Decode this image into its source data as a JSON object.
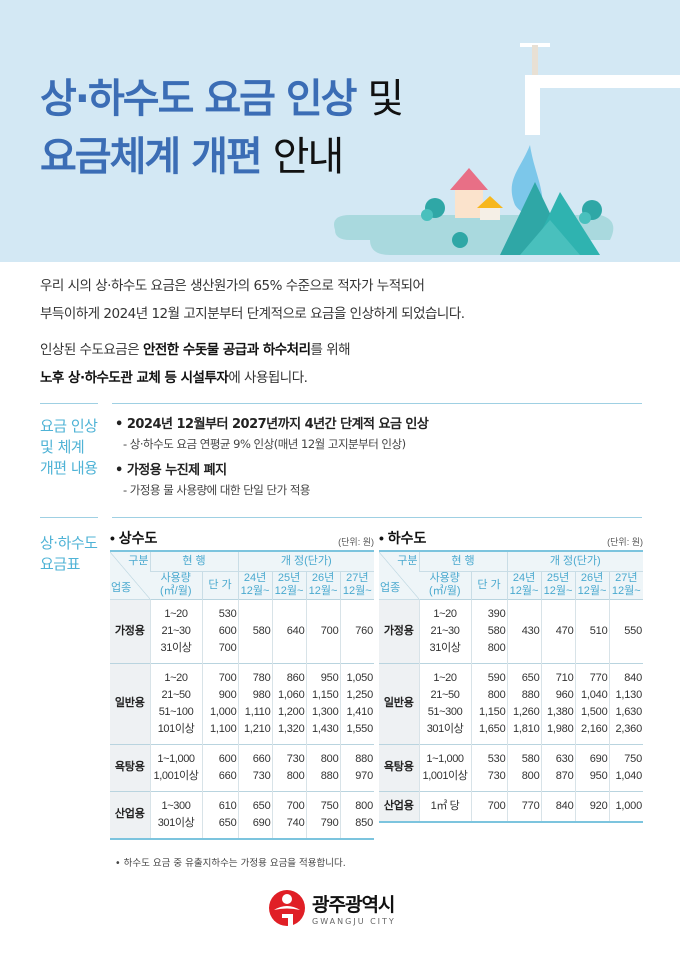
{
  "header": {
    "title_line1_bold": "상·하수도 요금 인상",
    "title_line1_plain": "및",
    "title_line2_bold": "요금체계 개편",
    "title_line2_plain": "안내"
  },
  "intro": {
    "p1_line1": "우리 시의 상·하수도 요금은 생산원가의 65% 수준으로 적자가 누적되어",
    "p1_line2": "부득이하게 2024년 12월 고지분부터 단계적으로 요금을 인상하게 되었습니다.",
    "p2_pre": "인상된 수도요금은 ",
    "p2_bold": "안전한 수돗물 공급과 하수처리",
    "p2_post": "를 위해",
    "p3_bold": "노후 상·하수도관 교체 등 시설투자",
    "p3_post": "에 사용됩니다."
  },
  "reform": {
    "label_lines": [
      "요금 인상",
      "및 체계",
      "개편 내용"
    ],
    "items": [
      {
        "title": "• 2024년 12월부터 2027년까지 4년간 단계적 요금 인상",
        "sub": "- 상·하수도 요금 연평균 9% 인상(매년 12월 고지분부터 인상)"
      },
      {
        "title": "• 가정용 누진제 폐지",
        "sub": "- 가정용 물 사용량에 대한 단일 단가 적용"
      }
    ]
  },
  "tables_label": [
    "상·하수도",
    "요금표"
  ],
  "table_headers": {
    "corner_top": "구분",
    "corner_bottom": "업종",
    "current": "현 행",
    "revised": "개 정(단가)",
    "usage": "사용량\n(㎥/월)",
    "price": "단 가",
    "years": [
      "24년\n12월~",
      "25년\n12월~",
      "26년\n12월~",
      "27년\n12월~"
    ]
  },
  "tables": [
    {
      "title": "• 상수도",
      "unit": "(단위: 원)",
      "rows": [
        {
          "cat": "가정용",
          "usage": [
            "1~20",
            "21~30",
            "31이상"
          ],
          "price": [
            "530",
            "600",
            "700"
          ],
          "new": [
            [
              "580"
            ],
            [
              "640"
            ],
            [
              "700"
            ],
            [
              "760"
            ]
          ]
        },
        {
          "cat": "일반용",
          "usage": [
            "1~20",
            "21~50",
            "51~100",
            "101이상"
          ],
          "price": [
            "700",
            "900",
            "1,000",
            "1,100"
          ],
          "new": [
            [
              "780",
              "980",
              "1,110",
              "1,210"
            ],
            [
              "860",
              "1,060",
              "1,200",
              "1,320"
            ],
            [
              "950",
              "1,150",
              "1,300",
              "1,430"
            ],
            [
              "1,050",
              "1,250",
              "1,410",
              "1,550"
            ]
          ]
        },
        {
          "cat": "욕탕용",
          "usage": [
            "1~1,000",
            "1,001이상"
          ],
          "price": [
            "600",
            "660"
          ],
          "new": [
            [
              "660",
              "730"
            ],
            [
              "730",
              "800"
            ],
            [
              "800",
              "880"
            ],
            [
              "880",
              "970"
            ]
          ]
        },
        {
          "cat": "산업용",
          "usage": [
            "1~300",
            "301이상"
          ],
          "price": [
            "610",
            "650"
          ],
          "new": [
            [
              "650",
              "690"
            ],
            [
              "700",
              "740"
            ],
            [
              "750",
              "790"
            ],
            [
              "800",
              "850"
            ]
          ]
        }
      ]
    },
    {
      "title": "• 하수도",
      "unit": "(단위: 원)",
      "rows": [
        {
          "cat": "가정용",
          "usage": [
            "1~20",
            "21~30",
            "31이상"
          ],
          "price": [
            "390",
            "580",
            "800"
          ],
          "new": [
            [
              "430"
            ],
            [
              "470"
            ],
            [
              "510"
            ],
            [
              "550"
            ]
          ]
        },
        {
          "cat": "일반용",
          "usage": [
            "1~20",
            "21~50",
            "51~300",
            "301이상"
          ],
          "price": [
            "590",
            "800",
            "1,150",
            "1,650"
          ],
          "new": [
            [
              "650",
              "880",
              "1,260",
              "1,810"
            ],
            [
              "710",
              "960",
              "1,380",
              "1,980"
            ],
            [
              "770",
              "1,040",
              "1,500",
              "2,160"
            ],
            [
              "840",
              "1,130",
              "1,630",
              "2,360"
            ]
          ]
        },
        {
          "cat": "욕탕용",
          "usage": [
            "1~1,000",
            "1,001이상"
          ],
          "price": [
            "530",
            "730"
          ],
          "new": [
            [
              "580",
              "800"
            ],
            [
              "630",
              "870"
            ],
            [
              "690",
              "950"
            ],
            [
              "750",
              "1,040"
            ]
          ]
        },
        {
          "cat": "산업용",
          "usage": [
            "1㎥ 당"
          ],
          "price": [
            "700"
          ],
          "new": [
            [
              "770"
            ],
            [
              "840"
            ],
            [
              "920"
            ],
            [
              "1,000"
            ]
          ]
        }
      ]
    }
  ],
  "footnote": "• 하수도 요금 중 유출지하수는 가정용 요금을 적용합니다.",
  "logo": {
    "name": "광주광역시",
    "en": "GWANGJU CITY"
  },
  "colors": {
    "title_blue": "#3b6db5",
    "accent_teal": "#4fb3d6",
    "hero_bg": "#d3e8f4",
    "logo_red": "#e01f26"
  }
}
